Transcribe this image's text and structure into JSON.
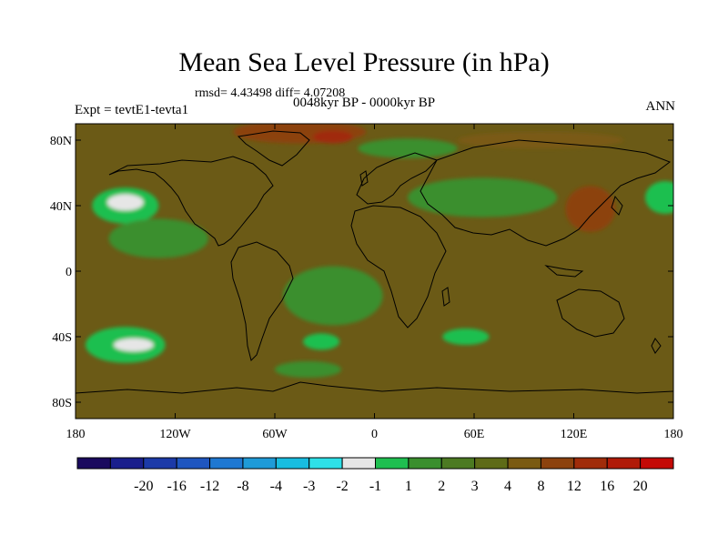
{
  "chart_data": {
    "type": "heatmap",
    "title": "Mean Sea Level Pressure (in hPa)",
    "subtitle": "rmsd= 4.43498 diff= 4.07208",
    "left_label": "Expt = tevtE1-tevta1",
    "center_label": "0048kyr BP - 0000kyr BP",
    "right_label": "ANN",
    "xlim": [
      -180,
      180
    ],
    "ylim": [
      -90,
      90
    ],
    "x_ticks": [
      {
        "value": -180,
        "label": "180"
      },
      {
        "value": -120,
        "label": "120W"
      },
      {
        "value": -60,
        "label": "60W"
      },
      {
        "value": 0,
        "label": "0"
      },
      {
        "value": 60,
        "label": "60E"
      },
      {
        "value": 120,
        "label": "120E"
      },
      {
        "value": 180,
        "label": "180"
      }
    ],
    "y_ticks": [
      {
        "value": 80,
        "label": "80N"
      },
      {
        "value": 40,
        "label": "40N"
      },
      {
        "value": 0,
        "label": "0"
      },
      {
        "value": -40,
        "label": "40S"
      },
      {
        "value": -80,
        "label": "80S"
      }
    ],
    "colorbar": {
      "colors": [
        "#1a0a5e",
        "#1a1f8c",
        "#1c3aa8",
        "#1f56c0",
        "#1f78d2",
        "#1f9bd8",
        "#18bde0",
        "#2ee0e8",
        "#e6e6e6",
        "#1fbf50",
        "#3a8f2e",
        "#4c7a22",
        "#5e6b18",
        "#7a5a12",
        "#8c420e",
        "#a02c0a",
        "#b01a08",
        "#c40a06"
      ],
      "labels": [
        "-20",
        "-16",
        "-12",
        "-8",
        "-4",
        "-3",
        "-2",
        "-1",
        "1",
        "2",
        "3",
        "4",
        "8",
        "12",
        "16",
        "20"
      ]
    },
    "regions": [
      {
        "level": 9,
        "lon": -150,
        "lat": 40,
        "rx": 20,
        "ry": 11
      },
      {
        "level": 8,
        "lon": -150,
        "lat": 42,
        "rx": 11,
        "ry": 5
      },
      {
        "level": 9,
        "lon": -150,
        "lat": -45,
        "rx": 24,
        "ry": 11
      },
      {
        "level": 8,
        "lon": -145,
        "lat": -45,
        "rx": 12,
        "ry": 4
      },
      {
        "level": 9,
        "lon": -32,
        "lat": -43,
        "rx": 11,
        "ry": 5
      },
      {
        "level": 9,
        "lon": 55,
        "lat": -40,
        "rx": 14,
        "ry": 5
      },
      {
        "level": 9,
        "lon": 175,
        "lat": 45,
        "rx": 12,
        "ry": 10
      },
      {
        "level": 10,
        "lon": -130,
        "lat": 20,
        "rx": 30,
        "ry": 12
      },
      {
        "level": 10,
        "lon": 65,
        "lat": 45,
        "rx": 45,
        "ry": 12
      },
      {
        "level": 10,
        "lon": 20,
        "lat": 75,
        "rx": 30,
        "ry": 6
      },
      {
        "level": 10,
        "lon": -25,
        "lat": -15,
        "rx": 30,
        "ry": 18
      },
      {
        "level": 10,
        "lon": -40,
        "lat": -60,
        "rx": 20,
        "ry": 5
      },
      {
        "level": 14,
        "lon": -45,
        "lat": 85,
        "rx": 40,
        "ry": 7
      },
      {
        "level": 15,
        "lon": -25,
        "lat": 82,
        "rx": 12,
        "ry": 4
      },
      {
        "level": 14,
        "lon": 130,
        "lat": 38,
        "rx": 15,
        "ry": 14
      },
      {
        "level": 13,
        "lon": 100,
        "lat": 80,
        "rx": 50,
        "ry": 5
      }
    ]
  }
}
